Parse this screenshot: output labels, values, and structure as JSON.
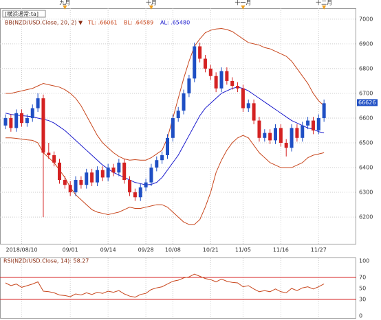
{
  "chart_data": {
    "type": "candlestick",
    "header": "[横浜通常:ta]",
    "bb_label": "BB(NZD/USD.Close, 20, 2) ▼",
    "tl_label": "TL: .66061",
    "bl_label": "BL: .64589",
    "al_label": "AL: .65480",
    "categories": [
      null,
      null,
      null,
      "2018/08/10",
      null,
      null,
      null,
      null,
      null,
      null,
      null,
      null,
      "09/01",
      null,
      null,
      null,
      null,
      null,
      null,
      "09/14",
      null,
      null,
      null,
      null,
      null,
      null,
      "09/28",
      null,
      null,
      null,
      null,
      "10/08",
      null,
      null,
      null,
      null,
      null,
      null,
      "10/21",
      null,
      null,
      null,
      null,
      null,
      "11/05",
      null,
      null,
      null,
      null,
      null,
      null,
      "11/16",
      null,
      null,
      null,
      null,
      null,
      null,
      "11/27",
      null
    ],
    "month_labels": [
      null,
      null,
      null,
      null,
      null,
      null,
      null,
      null,
      null,
      null,
      null,
      "九月",
      null,
      null,
      null,
      null,
      null,
      null,
      null,
      null,
      null,
      null,
      null,
      null,
      null,
      null,
      null,
      "十月",
      null,
      null,
      null,
      null,
      null,
      null,
      null,
      null,
      null,
      null,
      null,
      null,
      null,
      null,
      null,
      null,
      "十一月",
      null,
      null,
      null,
      null,
      null,
      null,
      null,
      null,
      null,
      null,
      null,
      null,
      null,
      null,
      "十二月"
    ],
    "candles": [
      [
        6570,
        6615,
        6555,
        6600
      ],
      [
        6600,
        6615,
        6545,
        6560
      ],
      [
        6560,
        6635,
        6545,
        6620
      ],
      [
        6620,
        6635,
        6565,
        6580
      ],
      [
        6580,
        6615,
        6565,
        6600
      ],
      [
        6600,
        6655,
        6585,
        6640
      ],
      [
        6640,
        6700,
        6625,
        6680
      ],
      [
        6680,
        6695,
        6200,
        6460
      ],
      [
        6460,
        6500,
        6435,
        6450
      ],
      [
        6450,
        6465,
        6405,
        6420
      ],
      [
        6420,
        6435,
        6335,
        6350
      ],
      [
        6350,
        6365,
        6315,
        6330
      ],
      [
        6330,
        6345,
        6285,
        6300
      ],
      [
        6300,
        6365,
        6285,
        6350
      ],
      [
        6350,
        6365,
        6315,
        6330
      ],
      [
        6330,
        6395,
        6315,
        6380
      ],
      [
        6380,
        6395,
        6325,
        6340
      ],
      [
        6340,
        6405,
        6325,
        6390
      ],
      [
        6390,
        6405,
        6345,
        6360
      ],
      [
        6360,
        6415,
        6345,
        6400
      ],
      [
        6400,
        6415,
        6365,
        6380
      ],
      [
        6380,
        6435,
        6365,
        6420
      ],
      [
        6420,
        6435,
        6335,
        6350
      ],
      [
        6350,
        6365,
        6285,
        6300
      ],
      [
        6300,
        6315,
        6265,
        6280
      ],
      [
        6280,
        6335,
        6265,
        6320
      ],
      [
        6320,
        6355,
        6305,
        6340
      ],
      [
        6340,
        6415,
        6325,
        6400
      ],
      [
        6400,
        6445,
        6385,
        6430
      ],
      [
        6430,
        6465,
        6415,
        6450
      ],
      [
        6450,
        6535,
        6435,
        6520
      ],
      [
        6520,
        6615,
        6505,
        6600
      ],
      [
        6600,
        6645,
        6585,
        6630
      ],
      [
        6630,
        6715,
        6615,
        6700
      ],
      [
        6700,
        6775,
        6685,
        6760
      ],
      [
        6760,
        6905,
        6745,
        6890
      ],
      [
        6890,
        6905,
        6825,
        6840
      ],
      [
        6840,
        6855,
        6785,
        6800
      ],
      [
        6800,
        6815,
        6755,
        6770
      ],
      [
        6770,
        6785,
        6705,
        6720
      ],
      [
        6720,
        6805,
        6705,
        6790
      ],
      [
        6790,
        6805,
        6735,
        6750
      ],
      [
        6750,
        6765,
        6715,
        6730
      ],
      [
        6730,
        6745,
        6705,
        6720
      ],
      [
        6720,
        6735,
        6625,
        6640
      ],
      [
        6640,
        6675,
        6625,
        6660
      ],
      [
        6660,
        6675,
        6575,
        6590
      ],
      [
        6590,
        6605,
        6505,
        6520
      ],
      [
        6520,
        6555,
        6505,
        6540
      ],
      [
        6540,
        6555,
        6495,
        6510
      ],
      [
        6510,
        6575,
        6495,
        6560
      ],
      [
        6560,
        6575,
        6485,
        6500
      ],
      [
        6500,
        6515,
        6445,
        6480
      ],
      [
        6480,
        6575,
        6465,
        6560
      ],
      [
        6560,
        6575,
        6505,
        6520
      ],
      [
        6520,
        6585,
        6505,
        6570
      ],
      [
        6570,
        6605,
        6555,
        6590
      ],
      [
        6590,
        6605,
        6535,
        6550
      ],
      [
        6550,
        6615,
        6535,
        6600
      ],
      [
        6600,
        6675,
        6585,
        6660
      ]
    ],
    "up_color": "#1f4fc4",
    "down_color": "#d42222",
    "bb_upper": [
      6700,
      6700,
      6705,
      6710,
      6715,
      6720,
      6730,
      6740,
      6735,
      6730,
      6725,
      6715,
      6700,
      6680,
      6650,
      6610,
      6570,
      6530,
      6500,
      6480,
      6460,
      6445,
      6435,
      6430,
      6432,
      6430,
      6430,
      6440,
      6455,
      6470,
      6520,
      6600,
      6680,
      6760,
      6830,
      6890,
      6920,
      6945,
      6955,
      6960,
      6962,
      6958,
      6950,
      6935,
      6920,
      6905,
      6900,
      6895,
      6885,
      6880,
      6870,
      6860,
      6850,
      6830,
      6800,
      6770,
      6740,
      6700,
      6670,
      6650
    ],
    "bb_mid": [
      6620,
      6615,
      6612,
      6610,
      6608,
      6605,
      6600,
      6595,
      6590,
      6580,
      6565,
      6550,
      6530,
      6510,
      6490,
      6470,
      6450,
      6430,
      6410,
      6395,
      6380,
      6370,
      6360,
      6350,
      6340,
      6335,
      6330,
      6332,
      6340,
      6360,
      6390,
      6420,
      6450,
      6490,
      6530,
      6570,
      6610,
      6640,
      6660,
      6680,
      6700,
      6710,
      6720,
      6725,
      6720,
      6710,
      6695,
      6680,
      6665,
      6650,
      6635,
      6620,
      6605,
      6590,
      6580,
      6570,
      6560,
      6555,
      6545,
      6540
    ],
    "bb_lower": [
      6520,
      6520,
      6518,
      6515,
      6512,
      6510,
      6500,
      6460,
      6440,
      6420,
      6390,
      6360,
      6320,
      6290,
      6270,
      6250,
      6230,
      6220,
      6215,
      6210,
      6215,
      6220,
      6230,
      6240,
      6235,
      6235,
      6240,
      6245,
      6250,
      6250,
      6240,
      6220,
      6200,
      6180,
      6170,
      6170,
      6190,
      6240,
      6300,
      6380,
      6430,
      6470,
      6500,
      6520,
      6530,
      6520,
      6490,
      6460,
      6440,
      6420,
      6410,
      6400,
      6400,
      6400,
      6410,
      6420,
      6440,
      6450,
      6455,
      6460
    ],
    "band_color": "#c8461c",
    "mid_color": "#1a1acc",
    "ylim": [
      6092,
      7044
    ],
    "yticks": [
      7000,
      6900,
      6800,
      6700,
      6600,
      6500,
      6400,
      6300,
      6200
    ],
    "last_price": {
      "value": 6662.6,
      "label": "66626"
    },
    "rsi_label": "RSI(NZD/USD.Close, 14): 58.27",
    "rsi": [
      60,
      55,
      58,
      52,
      55,
      58,
      62,
      45,
      44,
      42,
      38,
      37,
      35,
      40,
      38,
      42,
      39,
      43,
      41,
      45,
      43,
      46,
      40,
      36,
      34,
      39,
      41,
      48,
      51,
      53,
      58,
      63,
      65,
      69,
      71,
      76,
      72,
      68,
      66,
      62,
      67,
      63,
      61,
      60,
      53,
      55,
      49,
      44,
      46,
      44,
      49,
      44,
      42,
      50,
      46,
      51,
      53,
      49,
      53,
      58.27
    ],
    "rsi_ylim": [
      0,
      100
    ],
    "rsi_yticks": [
      100,
      70,
      50,
      30,
      0
    ],
    "rsi_levels": [
      70,
      30
    ]
  }
}
